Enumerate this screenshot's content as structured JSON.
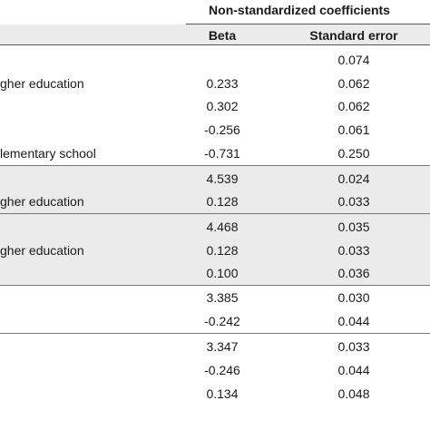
{
  "header": {
    "super_label": "Non-standardized coefficients",
    "beta_label": "Beta",
    "se_label": "Standard error"
  },
  "rows": [
    {
      "label": "",
      "beta": "",
      "se": "0.074"
    },
    {
      "label": "gher education",
      "beta": "0.233",
      "se": "0.062"
    },
    {
      "label": "",
      "beta": "0.302",
      "se": "0.062"
    },
    {
      "label": "",
      "beta": "-0.256",
      "se": "0.061"
    },
    {
      "label": "lementary school",
      "beta": "-0.731",
      "se": "0.250"
    },
    {
      "label": "",
      "beta": "4.539",
      "se": "0.024"
    },
    {
      "label": "gher education",
      "beta": "0.128",
      "se": "0.033"
    },
    {
      "label": "",
      "beta": "4.468",
      "se": "0.035"
    },
    {
      "label": "gher education",
      "beta": "0.128",
      "se": "0.033"
    },
    {
      "label": "",
      "beta": "0.100",
      "se": "0.036"
    },
    {
      "label": "",
      "beta": "3.385",
      "se": "0.030"
    },
    {
      "label": "",
      "beta": "-0.242",
      "se": "0.044"
    },
    {
      "label": "",
      "beta": "3.347",
      "se": "0.033"
    },
    {
      "label": "",
      "beta": "-0.246",
      "se": "0.044"
    },
    {
      "label": "",
      "beta": "0.134",
      "se": "0.048"
    }
  ]
}
